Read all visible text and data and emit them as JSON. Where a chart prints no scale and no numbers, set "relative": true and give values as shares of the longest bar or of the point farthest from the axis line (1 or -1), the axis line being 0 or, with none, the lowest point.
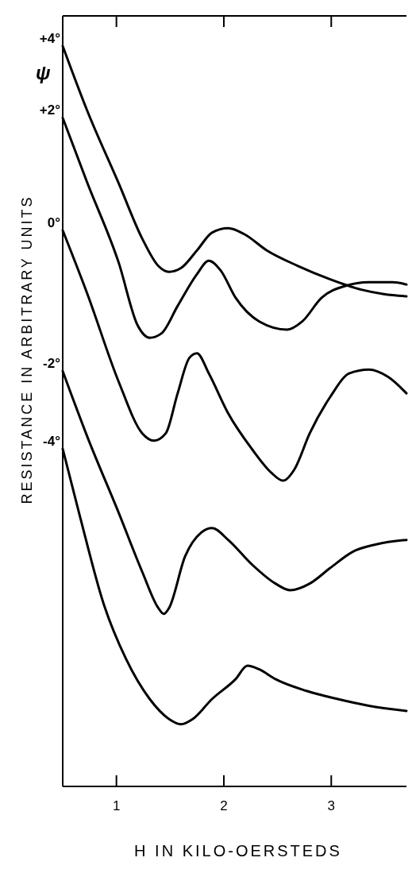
{
  "chart_data": {
    "type": "line",
    "relative": true,
    "xlabel": "H IN KILO-OERSTEDS",
    "ylabel": "RESISTANCE IN ARBITRARY UNITS",
    "annotations": [
      "ψ"
    ],
    "xlim": [
      0.5,
      3.7
    ],
    "xticks": [
      1,
      2,
      3
    ],
    "grid": false,
    "marker": "none",
    "line_style": "solid",
    "series": [
      {
        "name": "+4°",
        "color": "#000000",
        "x": [
          0.5,
          0.73,
          1.02,
          1.24,
          1.39,
          1.49,
          1.6,
          1.75,
          1.89,
          2.04,
          2.19,
          2.4,
          2.69,
          2.99,
          3.28,
          3.49,
          3.7
        ],
        "values": [
          1.0,
          0.912,
          0.815,
          0.74,
          0.703,
          0.695,
          0.7,
          0.724,
          0.748,
          0.754,
          0.746,
          0.724,
          0.703,
          0.685,
          0.671,
          0.665,
          0.662
        ]
      },
      {
        "name": "+2°",
        "color": "#000000",
        "x": [
          0.5,
          0.73,
          1.02,
          1.2,
          1.31,
          1.42,
          1.57,
          1.75,
          1.86,
          1.97,
          2.11,
          2.33,
          2.59,
          2.73,
          2.91,
          3.13,
          3.35,
          3.57,
          3.7
        ],
        "values": [
          0.903,
          0.815,
          0.708,
          0.622,
          0.606,
          0.612,
          0.649,
          0.692,
          0.71,
          0.697,
          0.66,
          0.628,
          0.617,
          0.628,
          0.66,
          0.676,
          0.681,
          0.681,
          0.678
        ]
      },
      {
        "name": "0°",
        "color": "#000000",
        "x": [
          0.5,
          0.73,
          1.02,
          1.24,
          1.35,
          1.46,
          1.57,
          1.68,
          1.75,
          1.86,
          2.04,
          2.26,
          2.44,
          2.55,
          2.66,
          2.8,
          2.99,
          3.17,
          3.35,
          3.53,
          3.7
        ],
        "values": [
          0.751,
          0.665,
          0.547,
          0.477,
          0.467,
          0.477,
          0.531,
          0.579,
          0.585,
          0.558,
          0.504,
          0.456,
          0.424,
          0.413,
          0.429,
          0.477,
          0.526,
          0.558,
          0.563,
          0.553,
          0.531
        ]
      },
      {
        "name": "-2°",
        "color": "#000000",
        "x": [
          0.5,
          0.73,
          1.02,
          1.24,
          1.39,
          1.44,
          1.49,
          1.64,
          1.79,
          1.89,
          2.04,
          2.26,
          2.48,
          2.62,
          2.8,
          2.99,
          3.2,
          3.42,
          3.7
        ],
        "values": [
          0.561,
          0.472,
          0.37,
          0.29,
          0.241,
          0.233,
          0.241,
          0.311,
          0.343,
          0.349,
          0.333,
          0.3,
          0.274,
          0.265,
          0.274,
          0.295,
          0.317,
          0.327,
          0.333
        ]
      },
      {
        "name": "-4°",
        "color": "#000000",
        "x": [
          0.5,
          0.66,
          0.88,
          1.09,
          1.31,
          1.49,
          1.6,
          1.71,
          1.89,
          2.11,
          2.22,
          2.33,
          2.48,
          2.77,
          3.06,
          3.35,
          3.7
        ],
        "values": [
          0.456,
          0.365,
          0.247,
          0.172,
          0.118,
          0.091,
          0.084,
          0.091,
          0.118,
          0.145,
          0.163,
          0.158,
          0.145,
          0.129,
          0.118,
          0.109,
          0.102
        ]
      }
    ]
  }
}
